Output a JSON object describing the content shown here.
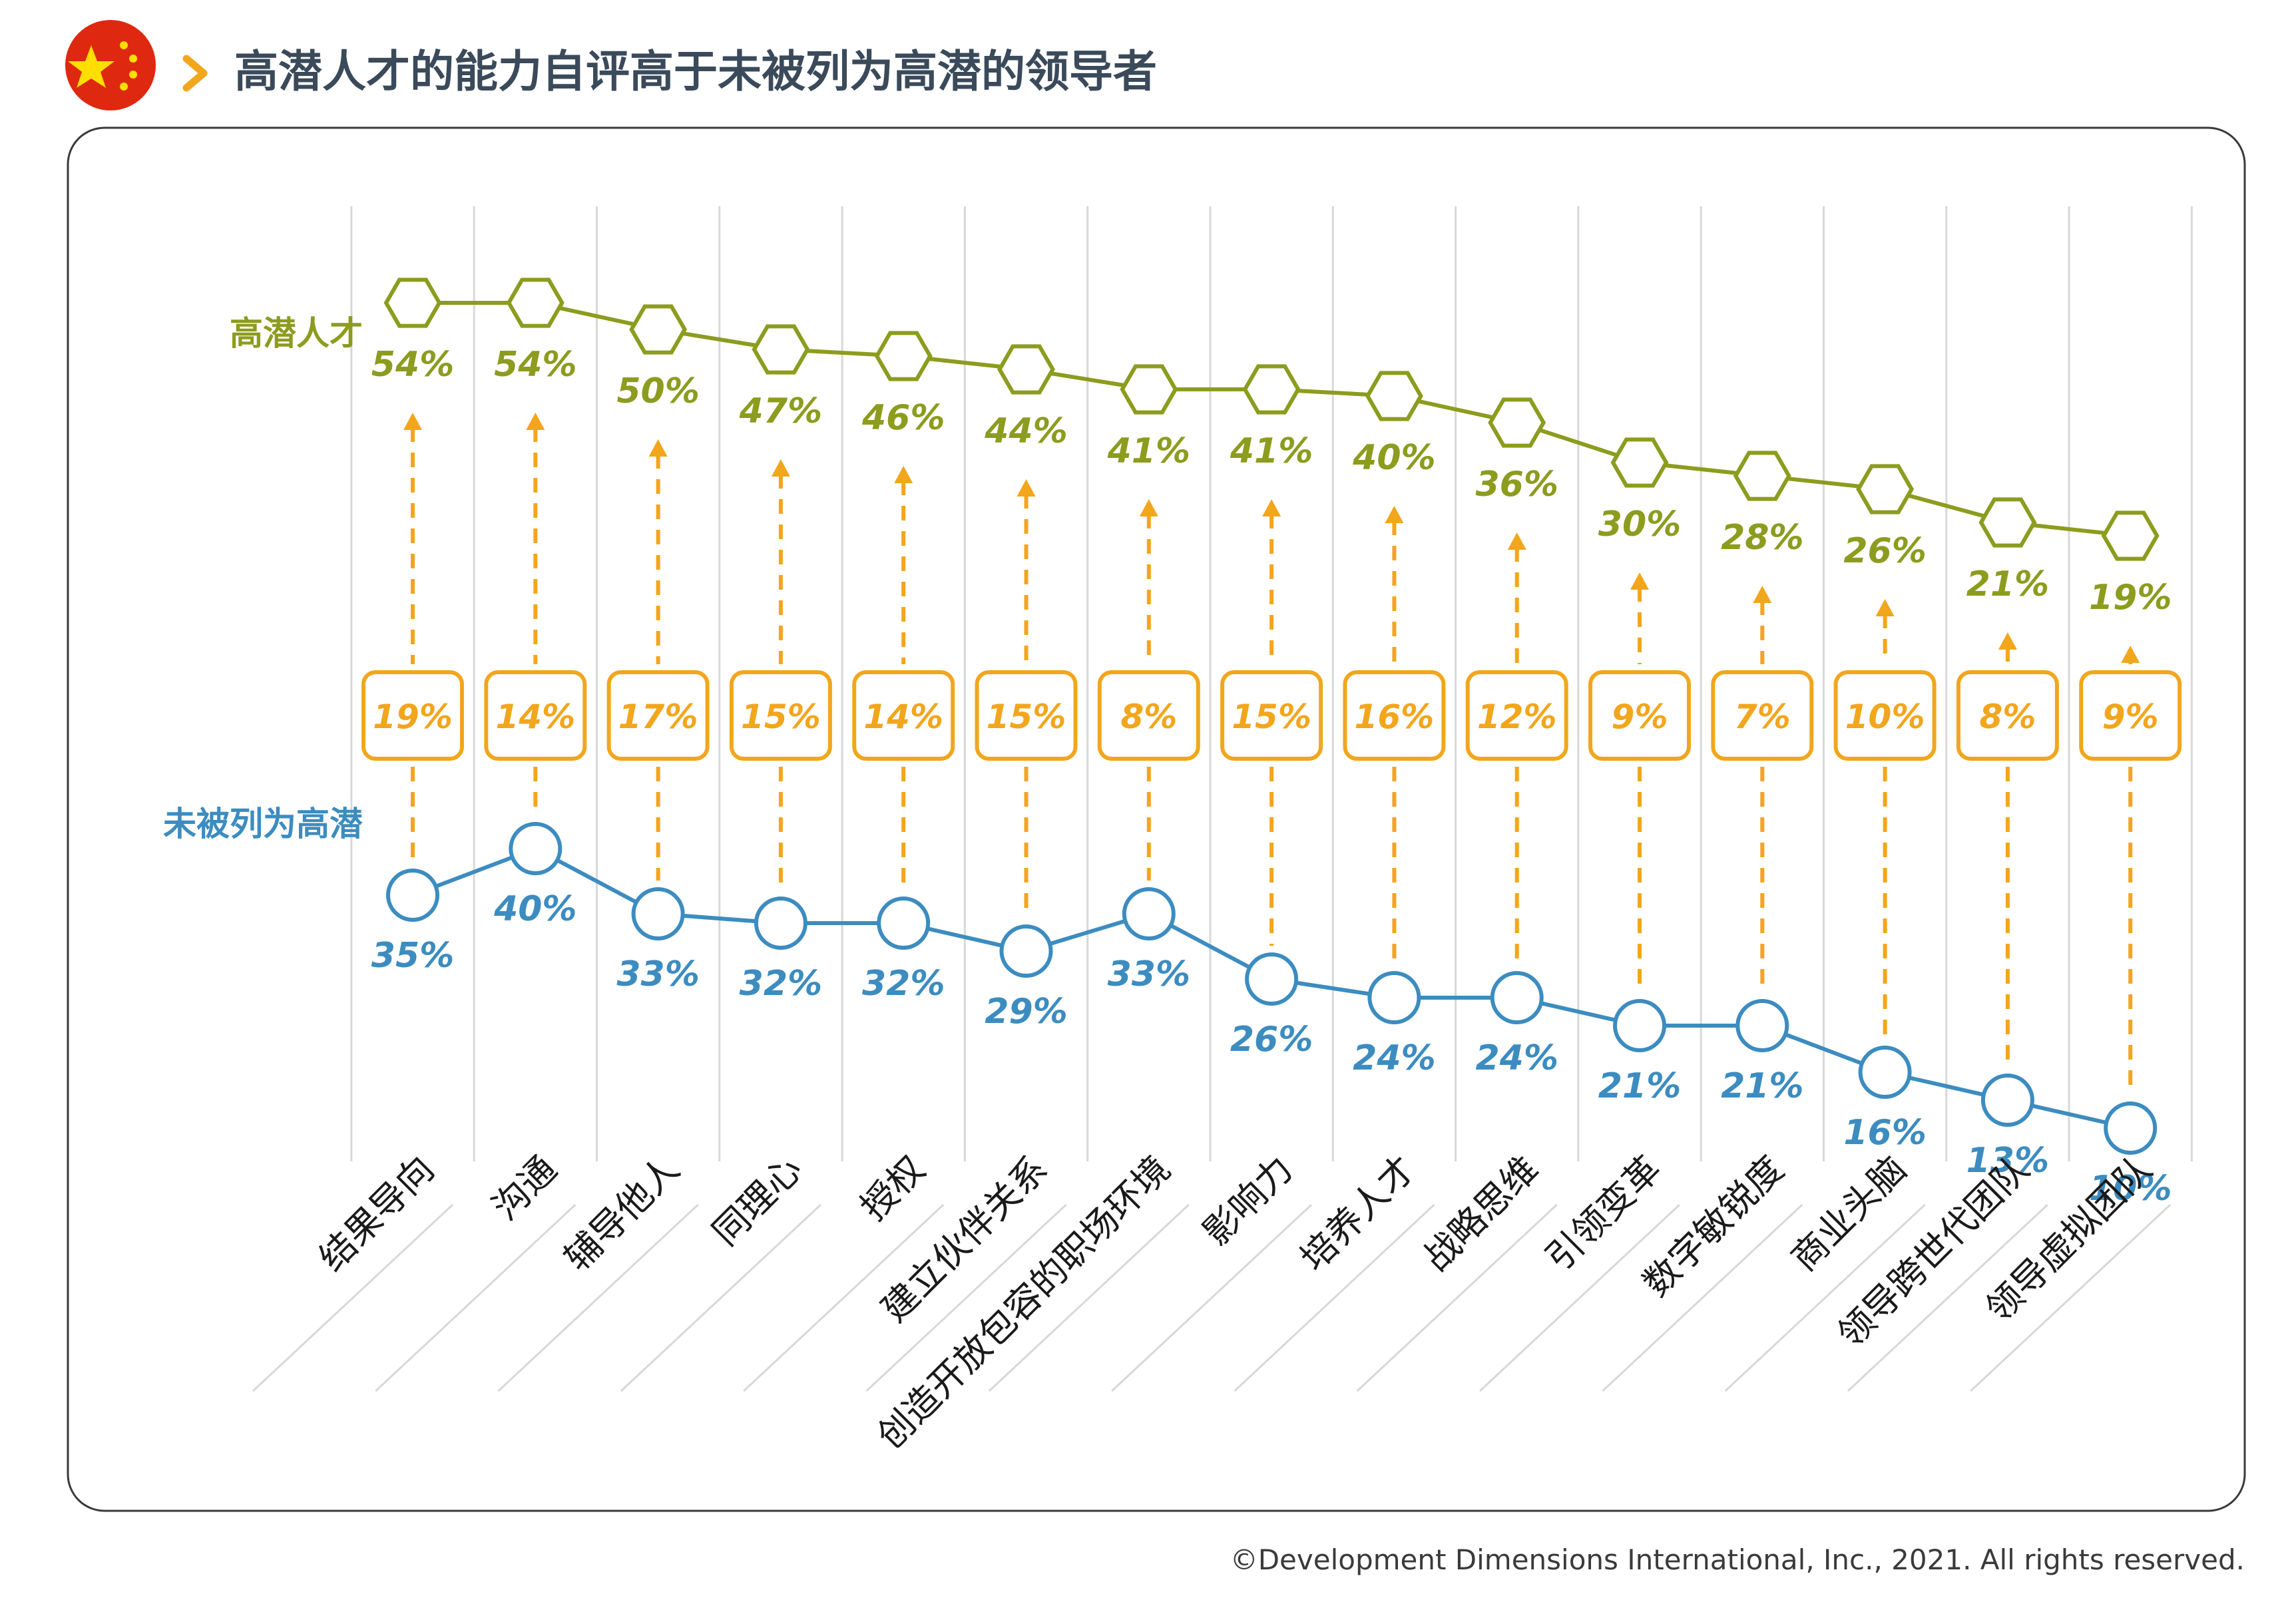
{
  "header": {
    "title": "高潜人才的能力自评高于未被列为高潜的领导者",
    "flag_icon": "china-flag-icon",
    "chevron_icon": "chevron-right-icon"
  },
  "legend": {
    "high": "高潜人才",
    "non": "未被列为高潜"
  },
  "footer": {
    "copyright": "©Development Dimensions International, Inc., 2021. All rights reserved."
  },
  "colors": {
    "high": "#8C9C1E",
    "non": "#3C8CC0",
    "gap": "#F2A61C",
    "title": "#3A4A5A",
    "flag": "#DE2910",
    "star": "#FFDE00"
  },
  "chart_data": {
    "type": "line",
    "categories": [
      "结果导向",
      "沟通",
      "辅导他人",
      "同理心",
      "授权",
      "建立伙伴关系",
      "创造开放包容的职场环境",
      "影响力",
      "培养人才",
      "战略思维",
      "引领变革",
      "数字敏锐度",
      "商业头脑",
      "领导跨世代团队",
      "领导虚拟团队"
    ],
    "series": [
      {
        "name": "高潜人才",
        "values": [
          54,
          54,
          50,
          47,
          46,
          44,
          41,
          41,
          40,
          36,
          30,
          28,
          26,
          21,
          19
        ],
        "labels": [
          "54%",
          "54%",
          "50%",
          "47%",
          "46%",
          "44%",
          "41%",
          "41%",
          "40%",
          "36%",
          "30%",
          "28%",
          "26%",
          "21%",
          "19%"
        ]
      },
      {
        "name": "未被列为高潜",
        "values": [
          35,
          40,
          33,
          32,
          32,
          29,
          33,
          26,
          24,
          24,
          21,
          21,
          16,
          13,
          10
        ],
        "labels": [
          "35%",
          "40%",
          "33%",
          "32%",
          "32%",
          "29%",
          "33%",
          "26%",
          "24%",
          "24%",
          "21%",
          "21%",
          "16%",
          "13%",
          "10%"
        ]
      }
    ],
    "gaps": [
      "19%",
      "14%",
      "17%",
      "15%",
      "14%",
      "15%",
      "8%",
      "15%",
      "16%",
      "12%",
      "9%",
      "7%",
      "10%",
      "8%",
      "9%"
    ],
    "ylim": [
      0,
      60
    ]
  }
}
